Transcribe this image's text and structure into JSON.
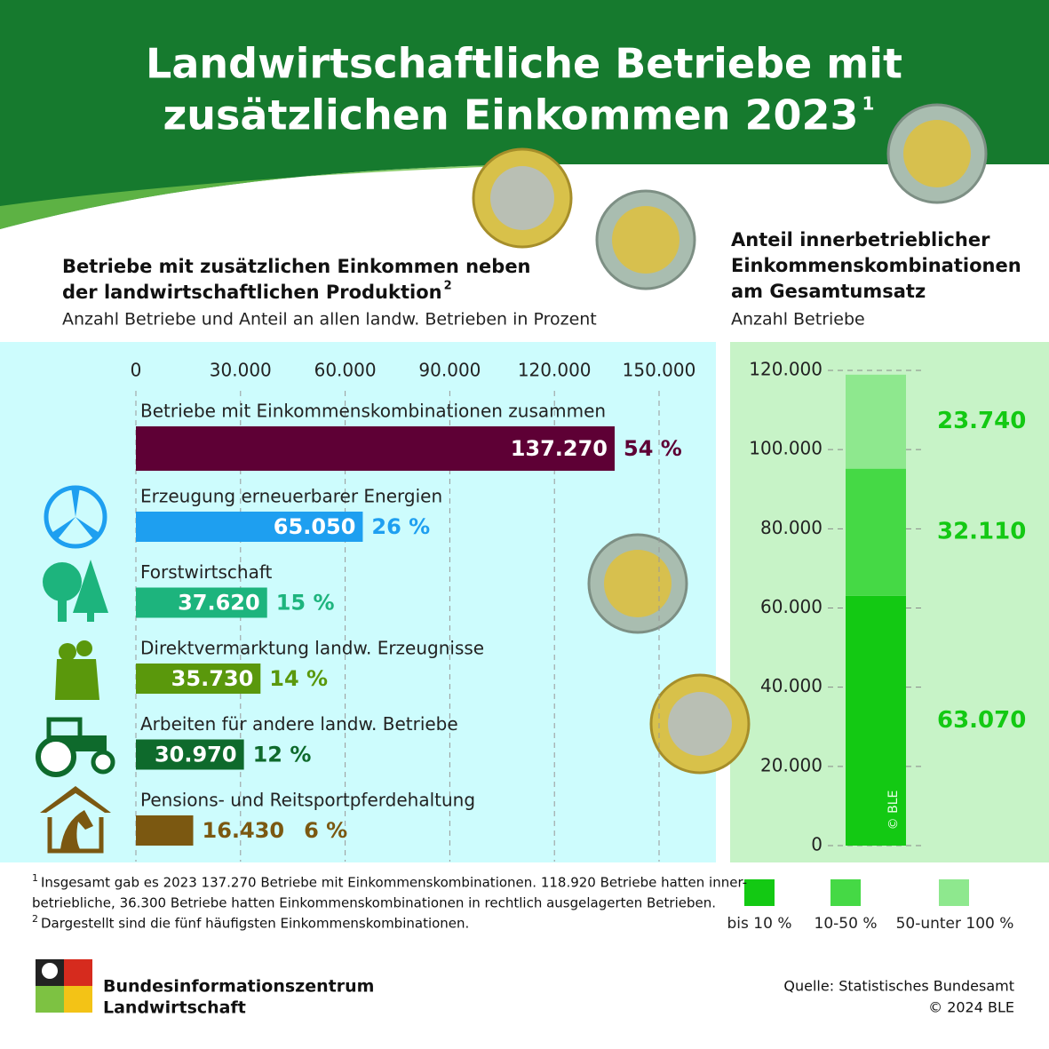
{
  "header": {
    "title_line1": "Landwirtschaftliche Betriebe mit",
    "title_line2": "zusätzlichen Einkommen 2023",
    "title_note": "1"
  },
  "chart_data": [
    {
      "type": "bar",
      "orientation": "horizontal",
      "title_line1": "Betriebe mit zusätzlichen Einkommen neben",
      "title_line2": "der landwirtschaftlichen Produktion",
      "title_note": "2",
      "subtitle": "Anzahl Betriebe und Anteil an allen landw. Betrieben in Prozent",
      "categories": [
        "Betriebe mit Einkommenskombinationen zusammen",
        "Erzeugung erneuerbarer Energien",
        "Forstwirtschaft",
        "Direktvermarktung landw. Erzeugnisse",
        "Arbeiten für andere landw. Betriebe",
        "Pensions- und Reitsportpferdehaltung"
      ],
      "values": [
        137270,
        65050,
        37620,
        35730,
        30970,
        16430
      ],
      "value_labels": [
        "137.270",
        "65.050",
        "37.620",
        "35.730",
        "30.970",
        "16.430"
      ],
      "shares": [
        54,
        26,
        15,
        14,
        12,
        6
      ],
      "share_labels": [
        "54 %",
        "26 %",
        "15 %",
        "14 %",
        "12 %",
        "6 %"
      ],
      "colors": [
        "#5e0035",
        "#1e9ff0",
        "#1db47d",
        "#5a980c",
        "#0e6a2c",
        "#7b5811"
      ],
      "xlim": [
        0,
        150000
      ],
      "xticks": [
        0,
        {
          "value": 30000,
          "label": "30.000"
        },
        {
          "value": 60000,
          "label": "60.000"
        },
        {
          "value": 90000,
          "label": "90.000"
        },
        {
          "value": 120000,
          "label": "120.000"
        },
        {
          "value": 150000,
          "label": "150.000"
        }
      ],
      "grid": true
    },
    {
      "type": "stacked-bar",
      "title_lines": [
        "Anteil innerbetrieblicher",
        "Einkommenskombinationen",
        "am Gesamtumsatz"
      ],
      "subtitle": "Anzahl Betriebe",
      "series": [
        {
          "name": "bis 10 %",
          "color": "#13c913",
          "values": [
            63070
          ],
          "value_labels": [
            "63.070"
          ]
        },
        {
          "name": "10-50 %",
          "color": "#45d945",
          "values": [
            32110
          ],
          "value_labels": [
            "32.110"
          ]
        },
        {
          "name": "50-unter 100 %",
          "color": "#8ee88e",
          "values": [
            23740
          ],
          "value_labels": [
            "23.740"
          ]
        }
      ],
      "ylim": [
        0,
        120000
      ],
      "yticks": [
        0,
        {
          "value": 20000,
          "label": "20.000"
        },
        {
          "value": 40000,
          "label": "40.000"
        },
        {
          "value": 60000,
          "label": "60.000"
        },
        {
          "value": 80000,
          "label": "80.000"
        },
        {
          "value": 100000,
          "label": "100.000"
        },
        {
          "value": 120000,
          "label": "120.000"
        }
      ],
      "watermark": "© BLE"
    }
  ],
  "footnotes": [
    {
      "mark": "1",
      "lines": [
        "Insgesamt gab es 2023 137.270 Betriebe mit Einkommenskombinationen. 118.920 Betriebe hatten inner-",
        "betriebliche, 36.300 Betriebe hatten Einkommenskombinationen in rechtlich ausgelagerten Betrieben."
      ]
    },
    {
      "mark": "2",
      "lines": [
        "Dargestellt sind die fünf häufigsten Einkommenskombinationen."
      ]
    }
  ],
  "footer": {
    "org_line1": "Bundesinformationszentrum",
    "org_line2": "Landwirtschaft",
    "source": "Quelle: Statistisches Bundesamt",
    "copyright": "© 2024 BLE"
  }
}
